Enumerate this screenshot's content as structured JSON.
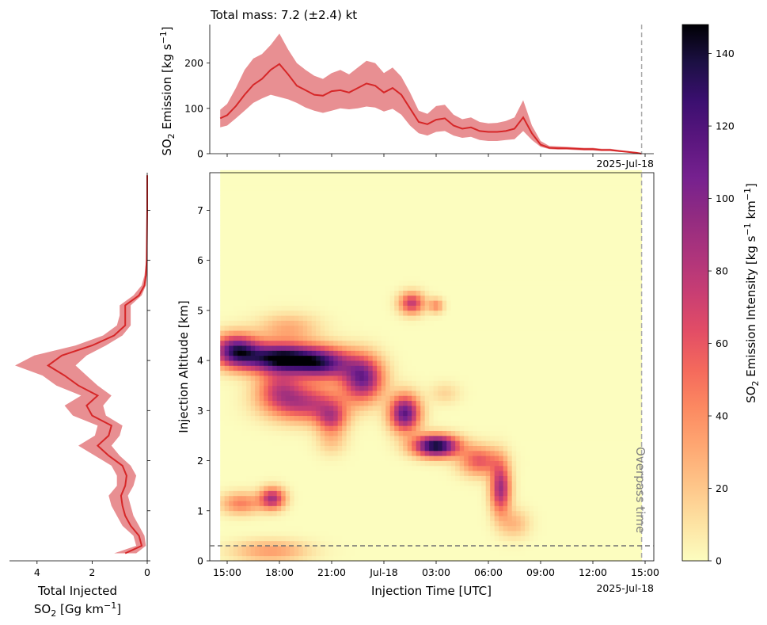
{
  "chart_data": [
    {
      "type": "area",
      "title": "Total mass: 7.2 (±2.4) kt",
      "ylabel_main": "SO",
      "ylabel_sub": "2",
      "ylabel_rest": " Emission [kg s",
      "ylabel_sup": "−1",
      "ylabel_end": "]",
      "date_label": "2025-Jul-18",
      "ylim": [
        0,
        285
      ],
      "yticks": [
        "0",
        "100",
        "200"
      ],
      "series": [
        {
          "x": [
            14.6,
            15.0,
            15.5,
            16.0,
            16.5,
            17.0,
            17.5,
            18.0,
            18.5,
            19.0,
            19.5,
            20.0,
            20.5,
            21.0,
            21.5,
            22.0,
            22.5,
            23.0,
            23.5,
            24.0,
            24.5,
            25.0,
            25.5,
            26.0,
            26.5,
            27.0,
            27.5,
            28.0,
            28.5,
            29.0,
            29.5,
            30.0,
            30.5,
            31.0,
            31.5,
            32.0,
            32.5,
            33.0,
            33.5,
            34.0,
            34.5,
            35.0,
            35.5,
            36.0,
            36.5,
            37.0,
            37.5,
            38.0,
            38.5,
            38.8
          ],
          "mean": [
            78,
            85,
            105,
            130,
            152,
            165,
            185,
            198,
            175,
            150,
            140,
            130,
            128,
            138,
            140,
            135,
            145,
            155,
            150,
            135,
            145,
            130,
            100,
            70,
            65,
            75,
            78,
            62,
            55,
            58,
            50,
            48,
            48,
            50,
            55,
            80,
            45,
            20,
            13,
            12,
            12,
            11,
            10,
            10,
            8,
            8,
            6,
            4,
            2,
            0
          ],
          "lower": [
            58,
            62,
            78,
            95,
            112,
            122,
            130,
            125,
            120,
            112,
            102,
            95,
            90,
            95,
            100,
            98,
            100,
            104,
            102,
            93,
            99,
            86,
            62,
            45,
            40,
            48,
            50,
            40,
            35,
            37,
            30,
            28,
            28,
            30,
            32,
            50,
            30,
            15,
            10,
            9,
            9,
            8,
            7,
            7,
            6,
            6,
            4,
            3,
            1,
            0
          ],
          "upper": [
            97,
            110,
            145,
            185,
            210,
            220,
            240,
            265,
            230,
            200,
            185,
            172,
            165,
            178,
            185,
            175,
            190,
            205,
            200,
            178,
            190,
            170,
            135,
            95,
            88,
            105,
            108,
            86,
            76,
            80,
            70,
            67,
            68,
            72,
            80,
            118,
            62,
            28,
            17,
            16,
            15,
            14,
            13,
            13,
            11,
            11,
            8,
            6,
            3,
            0
          ]
        }
      ]
    },
    {
      "type": "heatmap",
      "xlabel": "Injection Time [UTC]",
      "ylabel": "Injection Altitude [km]",
      "xlim": [
        14.0,
        39.5
      ],
      "ylim": [
        0,
        7.75
      ],
      "xticks": [
        "15:00",
        "18:00",
        "21:00",
        "Jul-18",
        "03:00",
        "06:00",
        "09:00",
        "12:00",
        "15:00"
      ],
      "xtick_values": [
        15,
        18,
        21,
        24,
        27,
        30,
        33,
        36,
        39
      ],
      "yticks": [
        "0",
        "1",
        "2",
        "3",
        "4",
        "5",
        "6",
        "7"
      ],
      "date_label": "2025-Jul-18",
      "overpass_time": 38.8,
      "overpass_label": "Overpass time",
      "reference_altitude": 0.3,
      "data_time_range": [
        14.6,
        38.8
      ],
      "blobs": [
        {
          "t": 15.5,
          "z": 4.2,
          "st": 0.9,
          "sz": 0.22,
          "v": 120
        },
        {
          "t": 18.0,
          "z": 4.05,
          "st": 1.4,
          "sz": 0.2,
          "v": 145
        },
        {
          "t": 20.5,
          "z": 3.95,
          "st": 1.2,
          "sz": 0.22,
          "v": 110
        },
        {
          "t": 22.8,
          "z": 3.65,
          "st": 0.8,
          "sz": 0.3,
          "v": 105
        },
        {
          "t": 25.2,
          "z": 2.95,
          "st": 0.6,
          "sz": 0.25,
          "v": 115
        },
        {
          "t": 27.0,
          "z": 2.3,
          "st": 0.9,
          "sz": 0.15,
          "v": 145
        },
        {
          "t": 29.5,
          "z": 2.0,
          "st": 0.8,
          "sz": 0.2,
          "v": 60
        },
        {
          "t": 30.7,
          "z": 1.45,
          "st": 0.4,
          "sz": 0.35,
          "v": 90
        },
        {
          "t": 19.5,
          "z": 3.15,
          "st": 1.5,
          "sz": 0.25,
          "v": 75
        },
        {
          "t": 18.0,
          "z": 3.45,
          "st": 0.9,
          "sz": 0.25,
          "v": 55
        },
        {
          "t": 21.0,
          "z": 2.85,
          "st": 0.6,
          "sz": 0.2,
          "v": 60
        },
        {
          "t": 17.6,
          "z": 1.25,
          "st": 0.5,
          "sz": 0.15,
          "v": 85
        },
        {
          "t": 15.8,
          "z": 1.15,
          "st": 0.8,
          "sz": 0.15,
          "v": 45
        },
        {
          "t": 25.6,
          "z": 5.15,
          "st": 0.5,
          "sz": 0.15,
          "v": 75
        },
        {
          "t": 27.0,
          "z": 5.1,
          "st": 0.3,
          "sz": 0.1,
          "v": 40
        },
        {
          "t": 18.5,
          "z": 4.65,
          "st": 1.2,
          "sz": 0.2,
          "v": 30
        },
        {
          "t": 17.5,
          "z": 0.2,
          "st": 1.5,
          "sz": 0.15,
          "v": 35
        },
        {
          "t": 21.0,
          "z": 2.4,
          "st": 0.6,
          "sz": 0.2,
          "v": 20
        },
        {
          "t": 31.5,
          "z": 0.75,
          "st": 0.6,
          "sz": 0.2,
          "v": 25
        },
        {
          "t": 27.5,
          "z": 3.35,
          "st": 0.6,
          "sz": 0.15,
          "v": 15
        }
      ]
    },
    {
      "type": "line",
      "xlabel_line1": "Total Injected",
      "xlabel_line2_main": "SO",
      "xlabel_line2_sub": "2",
      "xlabel_line2_rest": " [Gg km",
      "xlabel_line2_sup": "−1",
      "xlabel_line2_end": "]",
      "xlim": [
        5,
        0
      ],
      "xticks": [
        "4",
        "2",
        "0"
      ],
      "series": [
        {
          "altitude": [
            0.15,
            0.3,
            0.5,
            0.7,
            0.9,
            1.1,
            1.3,
            1.5,
            1.7,
            1.9,
            2.1,
            2.3,
            2.5,
            2.7,
            2.9,
            3.1,
            3.3,
            3.5,
            3.7,
            3.9,
            4.1,
            4.3,
            4.5,
            4.7,
            4.9,
            5.1,
            5.3,
            5.5,
            5.7,
            6.0,
            7.0,
            7.7
          ],
          "mean": [
            0.8,
            0.2,
            0.3,
            0.6,
            0.8,
            0.9,
            0.95,
            0.8,
            0.75,
            0.9,
            1.4,
            1.8,
            1.4,
            1.3,
            2.0,
            2.2,
            1.8,
            2.5,
            3.0,
            3.6,
            3.1,
            2.0,
            1.2,
            0.8,
            0.8,
            0.8,
            0.3,
            0.1,
            0.05,
            0.02,
            0,
            0
          ],
          "lower": [
            0.4,
            0.05,
            0.1,
            0.3,
            0.5,
            0.6,
            0.7,
            0.5,
            0.4,
            0.6,
            1.0,
            1.3,
            1.0,
            0.9,
            1.5,
            1.6,
            1.3,
            1.8,
            2.2,
            2.6,
            2.2,
            1.5,
            0.9,
            0.6,
            0.6,
            0.6,
            0.2,
            0.05,
            0.02,
            0.01,
            0,
            0
          ],
          "upper": [
            1.2,
            0.4,
            0.5,
            0.9,
            1.1,
            1.3,
            1.4,
            1.1,
            1.1,
            1.3,
            1.9,
            2.5,
            1.9,
            1.8,
            2.7,
            3.0,
            2.4,
            3.3,
            3.8,
            4.8,
            4.1,
            2.6,
            1.6,
            1.1,
            1.0,
            1.0,
            0.5,
            0.2,
            0.1,
            0.04,
            0,
            0
          ]
        }
      ]
    },
    {
      "type": "colorbar",
      "label_main": "SO",
      "label_sub": "2",
      "label_rest": " Emission Intensity [kg s",
      "label_sup1": "−1",
      "label_mid": " km",
      "label_sup2": "−1",
      "label_end": "]",
      "range": [
        0,
        148
      ],
      "ticks": [
        "0",
        "20",
        "40",
        "60",
        "80",
        "100",
        "120",
        "140"
      ],
      "tick_values": [
        0,
        20,
        40,
        60,
        80,
        100,
        120,
        140
      ]
    }
  ],
  "colors": {
    "line": "#d62728",
    "band": "#e47b7f",
    "overpass_line": "#a9a9a9",
    "reference_line": "#707070",
    "colormap": [
      "#fcfdbf",
      "#fde2a2",
      "#fec488",
      "#fea772",
      "#fc8961",
      "#f4695c",
      "#e24d66",
      "#c83e73",
      "#ad347c",
      "#912b81",
      "#76218f",
      "#5a167e",
      "#3b0f70",
      "#1c1044",
      "#000004"
    ]
  }
}
